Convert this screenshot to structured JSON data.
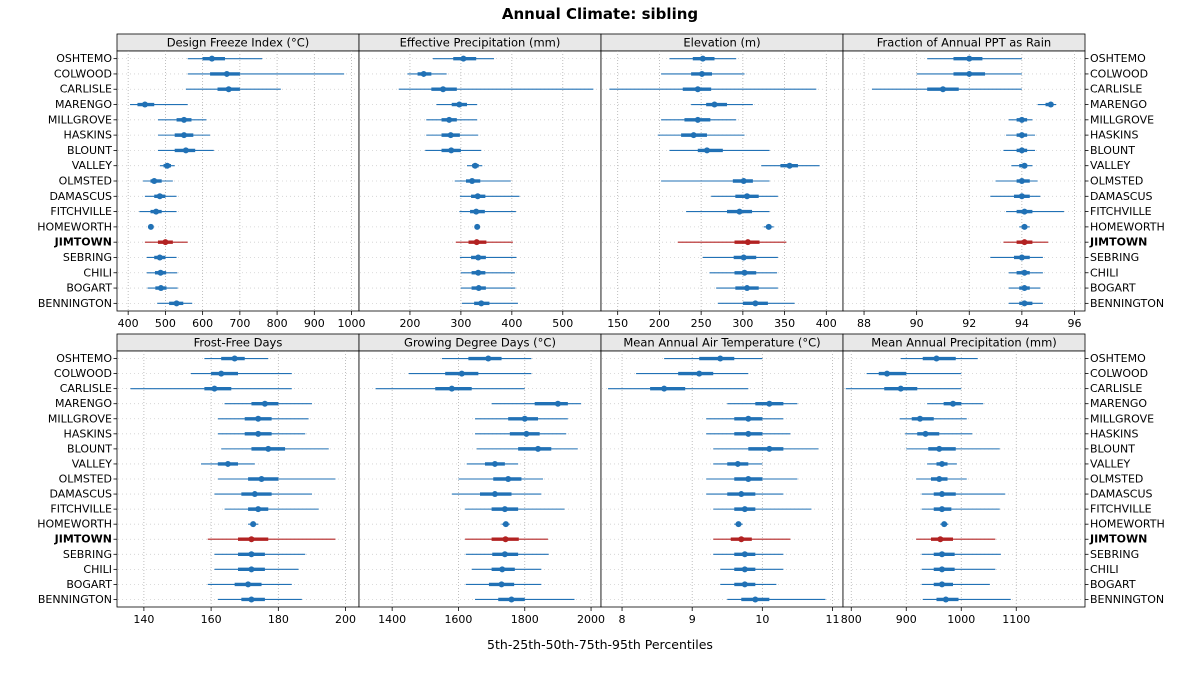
{
  "title": "Annual Climate: sibling",
  "caption": "5th-25th-50th-75th-95th Percentiles",
  "percentiles": [
    "5th",
    "25th",
    "50th",
    "75th",
    "95th"
  ],
  "highlight": "JIMTOWN",
  "colors": {
    "normal": "#2171b5",
    "highlight": "#b22222",
    "strip_bg": "#e8e8e8",
    "grid_v": "#b0b0b0",
    "grid_h": "#cfcfcf",
    "border": "#000000"
  },
  "categories": [
    "OSHTEMO",
    "COLWOOD",
    "CARLISLE",
    "MARENGO",
    "MILLGROVE",
    "HASKINS",
    "BLOUNT",
    "VALLEY",
    "OLMSTED",
    "DAMASCUS",
    "FITCHVILLE",
    "HOMEWORTH",
    "JIMTOWN",
    "SEBRING",
    "CHILI",
    "BOGART",
    "BENNINGTON"
  ],
  "chart_data": [
    {
      "type": "dotplot-percentiles",
      "title": "Design Freeze Index (°C)",
      "xlim": [
        370,
        1020
      ],
      "ticks": [
        400,
        500,
        600,
        700,
        800,
        900,
        1000
      ],
      "values": [
        [
          560,
          600,
          625,
          660,
          760
        ],
        [
          560,
          620,
          665,
          700,
          980
        ],
        [
          555,
          640,
          670,
          700,
          810
        ],
        [
          405,
          425,
          445,
          470,
          560
        ],
        [
          480,
          530,
          550,
          570,
          610
        ],
        [
          480,
          525,
          550,
          575,
          620
        ],
        [
          480,
          525,
          555,
          580,
          630
        ],
        [
          485,
          495,
          505,
          515,
          525
        ],
        [
          440,
          460,
          470,
          490,
          520
        ],
        [
          445,
          470,
          485,
          500,
          530
        ],
        [
          430,
          460,
          475,
          490,
          530
        ],
        [
          455,
          458,
          461,
          464,
          467
        ],
        [
          445,
          480,
          500,
          520,
          560
        ],
        [
          450,
          470,
          485,
          500,
          530
        ],
        [
          450,
          472,
          487,
          502,
          532
        ],
        [
          452,
          473,
          488,
          503,
          533
        ],
        [
          478,
          510,
          530,
          548,
          572
        ]
      ]
    },
    {
      "type": "dotplot-percentiles",
      "title": "Effective Precipitation (mm)",
      "xlim": [
        100,
        575
      ],
      "ticks": [
        200,
        300,
        400,
        500
      ],
      "values": [
        [
          245,
          285,
          305,
          330,
          365
        ],
        [
          195,
          215,
          227,
          242,
          272
        ],
        [
          178,
          242,
          265,
          292,
          560
        ],
        [
          252,
          282,
          297,
          312,
          332
        ],
        [
          232,
          262,
          277,
          292,
          332
        ],
        [
          232,
          262,
          280,
          298,
          334
        ],
        [
          230,
          262,
          281,
          300,
          340
        ],
        [
          312,
          322,
          328,
          335,
          342
        ],
        [
          288,
          310,
          322,
          338,
          398
        ],
        [
          298,
          320,
          333,
          348,
          415
        ],
        [
          297,
          318,
          330,
          347,
          408
        ],
        [
          327,
          330,
          332,
          334,
          337
        ],
        [
          290,
          315,
          331,
          350,
          402
        ],
        [
          298,
          320,
          334,
          349,
          409
        ],
        [
          300,
          321,
          334,
          348,
          406
        ],
        [
          300,
          321,
          335,
          349,
          407
        ],
        [
          302,
          326,
          340,
          356,
          412
        ]
      ]
    },
    {
      "type": "dotplot-percentiles",
      "title": "Elevation (m)",
      "xlim": [
        130,
        420
      ],
      "ticks": [
        150,
        200,
        250,
        300,
        350,
        400
      ],
      "values": [
        [
          212,
          240,
          252,
          266,
          292
        ],
        [
          202,
          238,
          251,
          263,
          302
        ],
        [
          140,
          228,
          246,
          262,
          388
        ],
        [
          238,
          256,
          266,
          281,
          312
        ],
        [
          202,
          230,
          246,
          261,
          292
        ],
        [
          198,
          226,
          241,
          257,
          302
        ],
        [
          212,
          246,
          257,
          276,
          332
        ],
        [
          322,
          345,
          356,
          366,
          392
        ],
        [
          202,
          288,
          301,
          312,
          332
        ],
        [
          262,
          291,
          305,
          319,
          342
        ],
        [
          232,
          281,
          296,
          311,
          332
        ],
        [
          325,
          328,
          331,
          334,
          337
        ],
        [
          222,
          290,
          306,
          320,
          352
        ],
        [
          252,
          289,
          301,
          316,
          342
        ],
        [
          260,
          290,
          302,
          316,
          341
        ],
        [
          268,
          291,
          305,
          319,
          342
        ],
        [
          270,
          300,
          315,
          330,
          362
        ]
      ]
    },
    {
      "type": "dotplot-percentiles",
      "title": "Fraction of Annual PPT as Rain",
      "xlim": [
        87.2,
        96.4
      ],
      "ticks": [
        88,
        90,
        92,
        94,
        96
      ],
      "values": [
        [
          90.4,
          91.4,
          92.0,
          92.5,
          94.0
        ],
        [
          90.0,
          91.4,
          92.0,
          92.6,
          94.0
        ],
        [
          88.3,
          90.4,
          91.0,
          91.6,
          94.0
        ],
        [
          94.6,
          94.9,
          95.1,
          95.2,
          95.3
        ],
        [
          93.5,
          93.8,
          94.0,
          94.2,
          94.4
        ],
        [
          93.4,
          93.8,
          94.0,
          94.2,
          94.5
        ],
        [
          93.3,
          93.8,
          94.0,
          94.2,
          94.5
        ],
        [
          93.6,
          93.9,
          94.1,
          94.2,
          94.4
        ],
        [
          93.0,
          93.8,
          94.0,
          94.3,
          94.6
        ],
        [
          92.8,
          93.7,
          94.0,
          94.3,
          94.7
        ],
        [
          93.4,
          93.8,
          94.1,
          94.4,
          95.6
        ],
        [
          93.9,
          94.0,
          94.1,
          94.2,
          94.3
        ],
        [
          93.3,
          93.8,
          94.1,
          94.4,
          95.0
        ],
        [
          92.8,
          93.7,
          94.0,
          94.3,
          94.8
        ],
        [
          93.5,
          93.8,
          94.1,
          94.3,
          94.8
        ],
        [
          93.5,
          93.9,
          94.1,
          94.3,
          94.7
        ],
        [
          93.5,
          93.9,
          94.1,
          94.4,
          94.8
        ]
      ]
    },
    {
      "type": "dotplot-percentiles",
      "title": "Frost-Free Days",
      "xlim": [
        132,
        204
      ],
      "ticks": [
        140,
        160,
        180,
        200
      ],
      "values": [
        [
          158,
          163,
          167,
          170,
          177
        ],
        [
          154,
          160,
          163,
          168,
          184
        ],
        [
          136,
          158,
          161,
          166,
          184
        ],
        [
          164,
          172,
          176,
          180,
          190
        ],
        [
          162,
          170,
          174,
          178,
          189
        ],
        [
          162,
          170,
          174,
          178,
          188
        ],
        [
          163,
          172,
          177,
          182,
          195
        ],
        [
          157,
          162,
          165,
          168,
          173
        ],
        [
          162,
          171,
          175,
          180,
          197
        ],
        [
          161,
          169,
          173,
          178,
          190
        ],
        [
          164,
          171,
          174,
          177,
          192
        ],
        [
          171,
          172,
          172.5,
          173,
          174
        ],
        [
          159,
          168,
          172,
          177,
          197
        ],
        [
          161,
          168,
          172,
          176,
          188
        ],
        [
          161,
          168,
          172,
          176,
          186
        ],
        [
          159,
          167,
          171,
          175,
          184
        ],
        [
          162,
          169,
          172,
          176,
          187
        ]
      ]
    },
    {
      "type": "dotplot-percentiles",
      "title": "Growing Degree Days (°C)",
      "xlim": [
        1300,
        2030
      ],
      "ticks": [
        1400,
        1600,
        1800,
        2000
      ],
      "values": [
        [
          1550,
          1630,
          1690,
          1730,
          1820
        ],
        [
          1450,
          1560,
          1610,
          1660,
          1820
        ],
        [
          1350,
          1530,
          1580,
          1640,
          1800
        ],
        [
          1700,
          1830,
          1900,
          1930,
          1970
        ],
        [
          1650,
          1750,
          1800,
          1840,
          1930
        ],
        [
          1650,
          1755,
          1805,
          1845,
          1925
        ],
        [
          1655,
          1780,
          1840,
          1880,
          1960
        ],
        [
          1625,
          1680,
          1710,
          1740,
          1780
        ],
        [
          1600,
          1705,
          1750,
          1790,
          1855
        ],
        [
          1580,
          1665,
          1710,
          1760,
          1850
        ],
        [
          1620,
          1700,
          1740,
          1780,
          1920
        ],
        [
          1730,
          1738,
          1743,
          1748,
          1755
        ],
        [
          1620,
          1700,
          1742,
          1782,
          1870
        ],
        [
          1622,
          1702,
          1740,
          1780,
          1872
        ],
        [
          1640,
          1700,
          1732,
          1770,
          1850
        ],
        [
          1622,
          1692,
          1730,
          1768,
          1850
        ],
        [
          1650,
          1720,
          1760,
          1800,
          1950
        ]
      ]
    },
    {
      "type": "dotplot-percentiles",
      "title": "Mean Annual Air Temperature (°C)",
      "xlim": [
        7.7,
        11.15
      ],
      "ticks": [
        8,
        9,
        10,
        11
      ],
      "values": [
        [
          8.6,
          9.1,
          9.4,
          9.6,
          10.0
        ],
        [
          8.2,
          8.8,
          9.1,
          9.3,
          9.8
        ],
        [
          7.8,
          8.4,
          8.6,
          8.9,
          9.8
        ],
        [
          9.5,
          9.9,
          10.1,
          10.3,
          10.5
        ],
        [
          9.2,
          9.6,
          9.8,
          10.0,
          10.3
        ],
        [
          9.2,
          9.6,
          9.8,
          10.0,
          10.4
        ],
        [
          9.3,
          9.8,
          10.1,
          10.3,
          10.8
        ],
        [
          9.3,
          9.5,
          9.65,
          9.8,
          10.0
        ],
        [
          9.2,
          9.6,
          9.8,
          10.0,
          10.5
        ],
        [
          9.2,
          9.5,
          9.7,
          9.9,
          10.3
        ],
        [
          9.3,
          9.6,
          9.75,
          9.9,
          10.7
        ],
        [
          9.6,
          9.63,
          9.66,
          9.69,
          9.72
        ],
        [
          9.3,
          9.55,
          9.7,
          9.85,
          10.4
        ],
        [
          9.3,
          9.6,
          9.75,
          9.9,
          10.3
        ],
        [
          9.4,
          9.6,
          9.75,
          9.9,
          10.3
        ],
        [
          9.4,
          9.6,
          9.75,
          9.9,
          10.2
        ],
        [
          9.5,
          9.7,
          9.9,
          10.1,
          10.9
        ]
      ]
    },
    {
      "type": "dotplot-percentiles",
      "title": "Mean Annual Precipitation (mm)",
      "xlim": [
        785,
        1225
      ],
      "ticks": [
        800,
        900,
        1000,
        1100
      ],
      "values": [
        [
          890,
          930,
          955,
          990,
          1030
        ],
        [
          828,
          850,
          865,
          900,
          1000
        ],
        [
          790,
          860,
          890,
          920,
          1000
        ],
        [
          938,
          968,
          985,
          1000,
          1040
        ],
        [
          888,
          910,
          925,
          950,
          1010
        ],
        [
          898,
          920,
          935,
          960,
          1020
        ],
        [
          900,
          940,
          960,
          990,
          1070
        ],
        [
          938,
          955,
          965,
          975,
          992
        ],
        [
          918,
          945,
          960,
          975,
          1010
        ],
        [
          928,
          950,
          965,
          990,
          1080
        ],
        [
          928,
          950,
          965,
          982,
          1070
        ],
        [
          962,
          966,
          969,
          972,
          976
        ],
        [
          918,
          945,
          962,
          985,
          1062
        ],
        [
          928,
          950,
          965,
          988,
          1072
        ],
        [
          928,
          950,
          965,
          988,
          1062
        ],
        [
          928,
          950,
          965,
          985,
          1052
        ],
        [
          930,
          955,
          972,
          995,
          1090
        ]
      ]
    }
  ]
}
